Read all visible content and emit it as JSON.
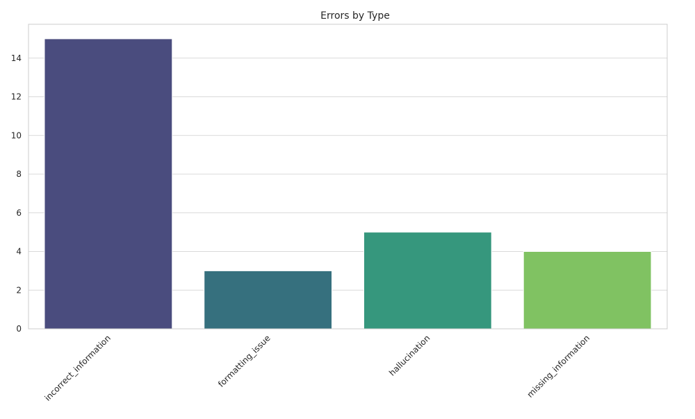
{
  "chart_data": {
    "type": "bar",
    "title": "Errors by Type",
    "xlabel": "",
    "ylabel": "",
    "categories": [
      "incorrect_information",
      "formatting_issue",
      "hallucination",
      "missing_information"
    ],
    "values": [
      15,
      3,
      5,
      4
    ],
    "colors": [
      "#4a4c7e",
      "#36707e",
      "#36977d",
      "#80c262"
    ],
    "ylim": [
      0,
      15.75
    ],
    "yticks": [
      0,
      2,
      4,
      6,
      8,
      10,
      12,
      14
    ],
    "grid": true,
    "legend": "none"
  }
}
